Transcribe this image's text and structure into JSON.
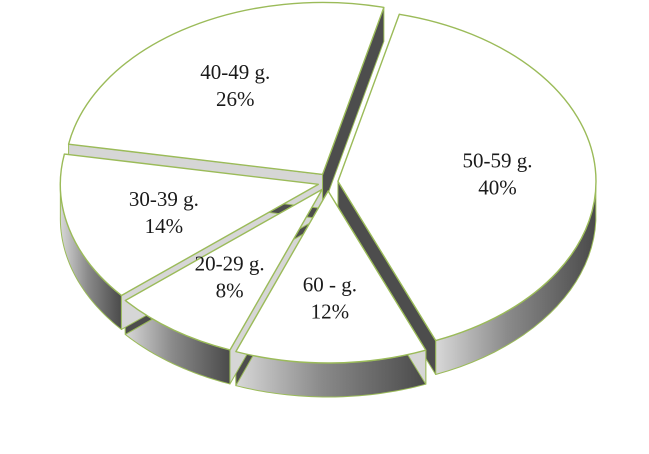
{
  "chart_data": {
    "type": "pie",
    "title": "",
    "style": "3d-exploded",
    "series": [
      {
        "values": [
          40,
          12,
          8,
          14,
          26
        ],
        "categories": [
          "50-59 g.",
          "60 - g.",
          "20-29 g.",
          "30-39 g.",
          "40-49 g."
        ],
        "value_labels": [
          "40%",
          "12%",
          "8%",
          "14%",
          "26%"
        ]
      }
    ],
    "colors": {
      "slice_fill": "#ffffff",
      "slice_outline": "#9bbb59",
      "side_dark": "#4d4d4d",
      "side_light": "#d6d6d6",
      "label": "#1a1a1a"
    },
    "legend": "none"
  }
}
